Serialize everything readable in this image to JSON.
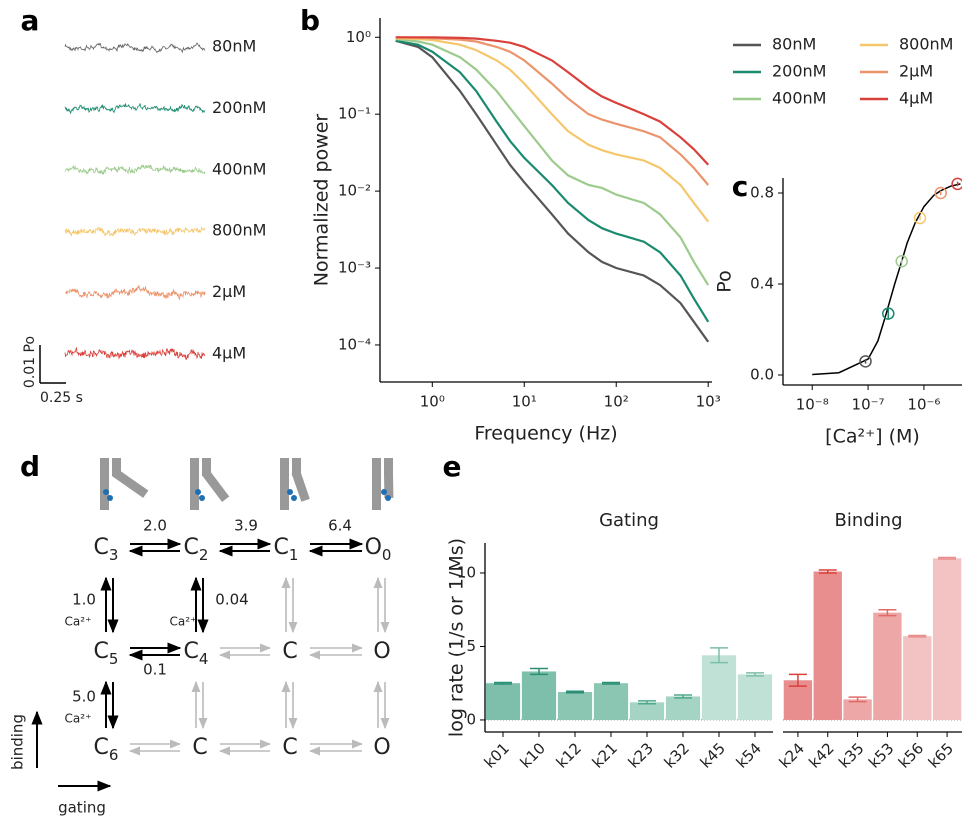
{
  "chart_data": [
    {
      "type": "trace",
      "panel": "a",
      "series": [
        {
          "name": "80nM",
          "color": "#666666"
        },
        {
          "name": "200nM",
          "color": "#1a8a6e"
        },
        {
          "name": "400nM",
          "color": "#9ccb8c"
        },
        {
          "name": "800nM",
          "color": "#f5c76c"
        },
        {
          "name": "2μM",
          "color": "#ec946c"
        },
        {
          "name": "4μM",
          "color": "#d9403b"
        }
      ],
      "scale_bar": {
        "y_label": "0.01 Po",
        "x_label": "0.25 s"
      }
    },
    {
      "type": "line",
      "panel": "b",
      "xlabel": "Frequency (Hz)",
      "ylabel": "Normalized power",
      "xlog": true,
      "ylog": true,
      "legend": "right",
      "xlim": [
        0.27,
        1100
      ],
      "ylim": [
        3.3e-05,
        1.78
      ],
      "xticks": [
        {
          "value": 1,
          "label": "10⁰"
        },
        {
          "value": 10,
          "label": "10¹"
        },
        {
          "value": 100,
          "label": "10²"
        },
        {
          "value": 1000,
          "label": "10³"
        }
      ],
      "yticks": [
        {
          "value": 0.0001,
          "label": "10⁻⁴"
        },
        {
          "value": 0.001,
          "label": "10⁻³"
        },
        {
          "value": 0.01,
          "label": "10⁻²"
        },
        {
          "value": 0.1,
          "label": "10⁻¹"
        },
        {
          "value": 1,
          "label": "10⁰"
        }
      ],
      "x": [
        0.4,
        0.7,
        1,
        2,
        3,
        5,
        7,
        10,
        20,
        30,
        50,
        70,
        100,
        200,
        300,
        500,
        700,
        1000
      ],
      "series": [
        {
          "name": "80nM",
          "color": "#555555",
          "values": [
            0.9,
            0.75,
            0.55,
            0.2,
            0.1,
            0.04,
            0.022,
            0.013,
            0.005,
            0.0028,
            0.0016,
            0.0012,
            0.001,
            0.0008,
            0.0006,
            0.00035,
            0.0002,
            0.00011
          ]
        },
        {
          "name": "200nM",
          "color": "#1a8a6e",
          "values": [
            0.9,
            0.8,
            0.65,
            0.35,
            0.2,
            0.08,
            0.045,
            0.027,
            0.012,
            0.007,
            0.0042,
            0.0033,
            0.0028,
            0.0022,
            0.0016,
            0.0008,
            0.0004,
            0.0002
          ]
        },
        {
          "name": "400nM",
          "color": "#9ccb8c",
          "values": [
            0.95,
            0.88,
            0.8,
            0.55,
            0.38,
            0.2,
            0.12,
            0.07,
            0.025,
            0.016,
            0.012,
            0.011,
            0.009,
            0.007,
            0.005,
            0.0025,
            0.0012,
            0.0006
          ]
        },
        {
          "name": "800nM",
          "color": "#f5c76c",
          "values": [
            0.97,
            0.95,
            0.92,
            0.8,
            0.68,
            0.5,
            0.38,
            0.25,
            0.1,
            0.06,
            0.04,
            0.034,
            0.03,
            0.025,
            0.02,
            0.012,
            0.007,
            0.004
          ]
        },
        {
          "name": "2μM",
          "color": "#ec946c",
          "values": [
            1,
            0.99,
            0.97,
            0.93,
            0.88,
            0.75,
            0.65,
            0.5,
            0.25,
            0.16,
            0.1,
            0.085,
            0.075,
            0.06,
            0.05,
            0.03,
            0.02,
            0.012
          ]
        },
        {
          "name": "4μM",
          "color": "#d9403b",
          "values": [
            1,
            1,
            1,
            0.98,
            0.96,
            0.9,
            0.85,
            0.75,
            0.5,
            0.35,
            0.22,
            0.17,
            0.14,
            0.1,
            0.08,
            0.05,
            0.035,
            0.022
          ]
        }
      ]
    },
    {
      "type": "scatter",
      "panel": "c",
      "xlabel": "[Ca²⁺] (M)",
      "ylabel": "Po",
      "xlog": true,
      "xlim": [
        3e-09,
        4.8e-06
      ],
      "ylim": [
        -0.044,
        0.866
      ],
      "xticks": [
        {
          "value": 1e-08,
          "label": "10⁻⁸"
        },
        {
          "value": 1e-07,
          "label": "10⁻⁷"
        },
        {
          "value": 1e-06,
          "label": "10⁻⁶"
        }
      ],
      "yticks": [
        {
          "value": 0,
          "label": "0.0"
        },
        {
          "value": 0.4,
          "label": "0.4"
        },
        0.8
      ],
      "x": [
        9e-08,
        2.3e-07,
        4e-07,
        8.5e-07,
        2e-06,
        4e-06
      ],
      "values": [
        0.06,
        0.27,
        0.5,
        0.69,
        0.8,
        0.84
      ],
      "errors": [
        0.01,
        0.025,
        0.01,
        0.01,
        0.01,
        0.01
      ],
      "colors": [
        "#555555",
        "#1a8a6e",
        "#9ccb8c",
        "#f5c76c",
        "#ec946c",
        "#d9403b"
      ],
      "fit": {
        "color": "#000000",
        "x": [
          1e-08,
          3e-08,
          1e-07,
          1.5e-07,
          2e-07,
          3e-07,
          4e-07,
          5e-07,
          7e-07,
          1e-06,
          1.5e-06,
          2e-06,
          3e-06,
          4.5e-06
        ],
        "values": [
          0.002,
          0.01,
          0.07,
          0.15,
          0.25,
          0.4,
          0.5,
          0.58,
          0.67,
          0.74,
          0.79,
          0.81,
          0.83,
          0.84
        ]
      }
    },
    {
      "type": "bar",
      "panel": "e",
      "title": "Gating",
      "title_color": "#1a8a6e",
      "ylabel": "log rate (1/s or 1/Ms)",
      "ylim": [
        -0.82,
        12.04
      ],
      "yticks": [
        0,
        5,
        10
      ],
      "categories": [
        "k01",
        "k10",
        "k12",
        "k21",
        "k23",
        "k32",
        "k45",
        "k54"
      ],
      "values": [
        2.5,
        3.3,
        1.9,
        2.5,
        1.2,
        1.6,
        4.4,
        3.1
      ],
      "errors": [
        0.05,
        0.2,
        0.05,
        0.05,
        0.1,
        0.1,
        0.5,
        0.1
      ],
      "colors": [
        "#7dbfaa",
        "#7dbfaa",
        "#8ac6b2",
        "#8ac6b2",
        "#a6d4c4",
        "#a6d4c4",
        "#c0e1d6",
        "#c0e1d6"
      ],
      "error_colors": [
        "#2b8f74",
        "#2b8f74",
        "#2b8f74",
        "#2b8f74",
        "#4ea88d",
        "#4ea88d",
        "#7dbfaa",
        "#7dbfaa"
      ]
    },
    {
      "type": "bar",
      "title": "Binding",
      "title_color": "#d9403b",
      "ylim": [
        -0.82,
        12.04
      ],
      "categories": [
        "k24",
        "k42",
        "k35",
        "k53",
        "k56",
        "k65"
      ],
      "values": [
        2.7,
        10.1,
        1.4,
        7.3,
        5.7,
        11.0
      ],
      "errors": [
        0.4,
        0.1,
        0.15,
        0.2,
        0.05,
        0.05
      ],
      "colors": [
        "#e98e8e",
        "#e98e8e",
        "#eea7a7",
        "#eea7a7",
        "#f3c3c3",
        "#f3c3c3"
      ],
      "error_colors": [
        "#d9403b",
        "#d9403b",
        "#e06a66",
        "#e06a66",
        "#e98e8e",
        "#e98e8e"
      ]
    }
  ],
  "diagram": {
    "panel": "d",
    "states": [
      [
        {
          "label": "C",
          "sub": "3",
          "color": "#000000"
        },
        {
          "label": "C",
          "sub": "2",
          "color": "#000000"
        },
        {
          "label": "C",
          "sub": "1",
          "color": "#000000"
        },
        {
          "label": "O",
          "sub": "0",
          "color": "#e8312c"
        }
      ],
      [
        {
          "label": "C",
          "sub": "5",
          "color": "#000000"
        },
        {
          "label": "C",
          "sub": "4",
          "color": "#000000"
        },
        {
          "label": "C",
          "color": "#bbbbbb"
        },
        {
          "label": "O",
          "color": "#bbbbbb"
        }
      ],
      [
        {
          "label": "C",
          "sub": "6",
          "color": "#000000"
        },
        {
          "label": "C",
          "color": "#bbbbbb"
        },
        {
          "label": "C",
          "color": "#bbbbbb"
        },
        {
          "label": "O",
          "color": "#bbbbbb"
        }
      ]
    ],
    "rates": [
      "2.0",
      "3.9",
      "6.4",
      "1.0",
      "0.04",
      "0.1",
      "5.0"
    ],
    "ca_labels": [
      "Ca²⁺",
      "Ca²⁺",
      "Ca²⁺"
    ],
    "y_axis_label": "binding",
    "x_axis_label": "gating"
  }
}
